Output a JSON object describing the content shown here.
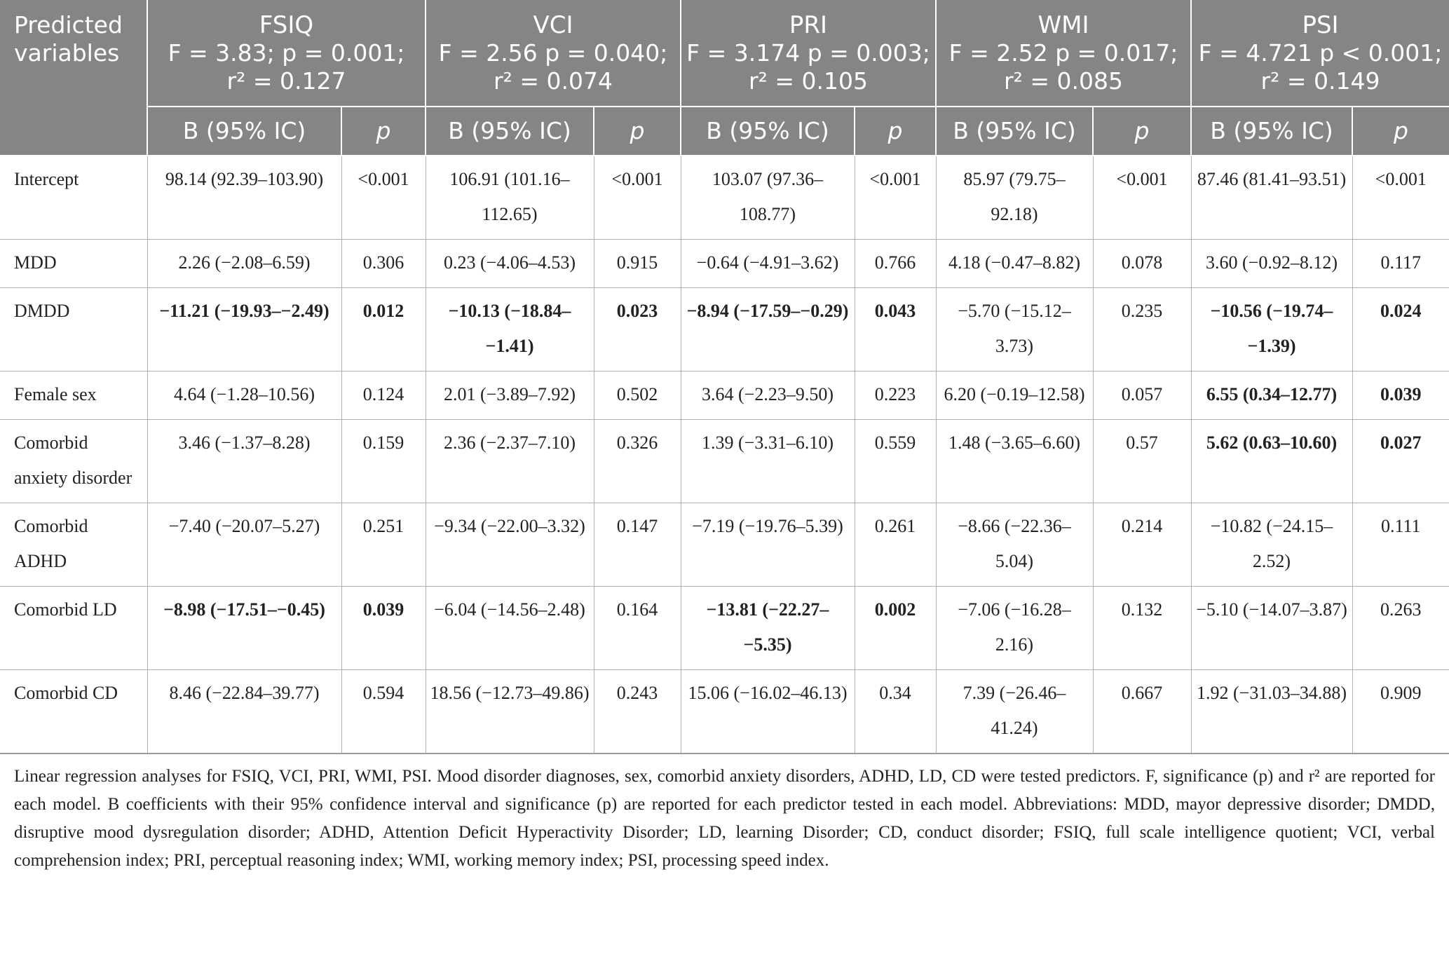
{
  "table": {
    "corner_label": "Predicted variables",
    "groups": [
      {
        "name": "FSIQ",
        "stats_line1": "F = 3.83; p = 0.001;",
        "stats_line2": "r² = 0.127"
      },
      {
        "name": "VCI",
        "stats_line1": "F = 2.56 p = 0.040;",
        "stats_line2": "r² = 0.074"
      },
      {
        "name": "PRI",
        "stats_line1": "F = 3.174 p = 0.003;",
        "stats_line2": "r² = 0.105"
      },
      {
        "name": "WMI",
        "stats_line1": "F = 2.52 p = 0.017;",
        "stats_line2": "r² = 0.085"
      },
      {
        "name": "PSI",
        "stats_line1": "F = 4.721 p < 0.001;",
        "stats_line2": "r² = 0.149"
      }
    ],
    "sub_headers": {
      "b": "B (95% IC)",
      "p": "p"
    },
    "rows": [
      {
        "label": "Intercept",
        "cells": [
          {
            "b": "98.14 (92.39–103.90)",
            "p": "<0.001"
          },
          {
            "b": "106.91 (101.16–112.65)",
            "p": "<0.001"
          },
          {
            "b": "103.07 (97.36–108.77)",
            "p": "<0.001"
          },
          {
            "b": "85.97 (79.75–92.18)",
            "p": "<0.001"
          },
          {
            "b": "87.46 (81.41–93.51)",
            "p": "<0.001"
          }
        ]
      },
      {
        "label": "MDD",
        "cells": [
          {
            "b": "2.26 (−2.08–6.59)",
            "p": "0.306"
          },
          {
            "b": "0.23 (−4.06–4.53)",
            "p": "0.915"
          },
          {
            "b": "−0.64 (−4.91–3.62)",
            "p": "0.766"
          },
          {
            "b": "4.18 (−0.47–8.82)",
            "p": "0.078"
          },
          {
            "b": "3.60 (−0.92–8.12)",
            "p": "0.117"
          }
        ]
      },
      {
        "label": "DMDD",
        "cells": [
          {
            "b": "−11.21 (−19.93–−2.49)",
            "p": "0.012",
            "bold": true
          },
          {
            "b": "−10.13 (−18.84–−1.41)",
            "p": "0.023",
            "bold": true
          },
          {
            "b": "−8.94 (−17.59–−0.29)",
            "p": "0.043",
            "bold": true
          },
          {
            "b": "−5.70 (−15.12–3.73)",
            "p": "0.235"
          },
          {
            "b": "−10.56 (−19.74–−1.39)",
            "p": "0.024",
            "bold": true
          }
        ]
      },
      {
        "label": "Female sex",
        "cells": [
          {
            "b": "4.64 (−1.28–10.56)",
            "p": "0.124"
          },
          {
            "b": "2.01 (−3.89–7.92)",
            "p": "0.502"
          },
          {
            "b": "3.64 (−2.23–9.50)",
            "p": "0.223"
          },
          {
            "b": "6.20 (−0.19–12.58)",
            "p": "0.057"
          },
          {
            "b": "6.55 (0.34–12.77)",
            "p": "0.039",
            "bold": true
          }
        ]
      },
      {
        "label": "Comorbid anxiety disorder",
        "cells": [
          {
            "b": "3.46 (−1.37–8.28)",
            "p": "0.159"
          },
          {
            "b": "2.36 (−2.37–7.10)",
            "p": "0.326"
          },
          {
            "b": "1.39 (−3.31–6.10)",
            "p": "0.559"
          },
          {
            "b": "1.48 (−3.65–6.60)",
            "p": "0.57"
          },
          {
            "b": "5.62 (0.63–10.60)",
            "p": "0.027",
            "bold": true
          }
        ]
      },
      {
        "label": "Comorbid ADHD",
        "cells": [
          {
            "b": "−7.40 (−20.07–5.27)",
            "p": "0.251"
          },
          {
            "b": "−9.34 (−22.00–3.32)",
            "p": "0.147"
          },
          {
            "b": "−7.19 (−19.76–5.39)",
            "p": "0.261"
          },
          {
            "b": "−8.66 (−22.36–5.04)",
            "p": "0.214"
          },
          {
            "b": "−10.82 (−24.15–2.52)",
            "p": "0.111"
          }
        ]
      },
      {
        "label": "Comorbid LD",
        "cells": [
          {
            "b": "−8.98 (−17.51–−0.45)",
            "p": "0.039",
            "bold": true
          },
          {
            "b": "−6.04 (−14.56–2.48)",
            "p": "0.164"
          },
          {
            "b": "−13.81 (−22.27–−5.35)",
            "p": "0.002",
            "bold": true
          },
          {
            "b": "−7.06 (−16.28–2.16)",
            "p": "0.132"
          },
          {
            "b": "−5.10 (−14.07–3.87)",
            "p": "0.263"
          }
        ]
      },
      {
        "label": "Comorbid CD",
        "cells": [
          {
            "b": "8.46 (−22.84–39.77)",
            "p": "0.594"
          },
          {
            "b": "18.56 (−12.73–49.86)",
            "p": "0.243"
          },
          {
            "b": "15.06 (−16.02–46.13)",
            "p": "0.34"
          },
          {
            "b": "7.39 (−26.46–41.24)",
            "p": "0.667"
          },
          {
            "b": "1.92 (−31.03–34.88)",
            "p": "0.909"
          }
        ]
      }
    ],
    "footnote": "Linear regression analyses for FSIQ, VCI, PRI, WMI, PSI. Mood disorder diagnoses, sex, comorbid anxiety disorders, ADHD, LD, CD were tested predictors. F, significance (p) and r² are reported for each model. B coefficients with their 95% confidence interval and significance (p) are reported for each predictor tested in each model. Abbreviations: MDD, mayor depressive disorder; DMDD, disruptive mood dysregulation disorder; ADHD, Attention Deficit Hyperactivity Disorder; LD, learning Disorder; CD, conduct disorder; FSIQ, full scale intelligence quotient; VCI, verbal comprehension index; PRI, perceptual reasoning index; WMI, working memory index; PSI, processing speed index."
  }
}
